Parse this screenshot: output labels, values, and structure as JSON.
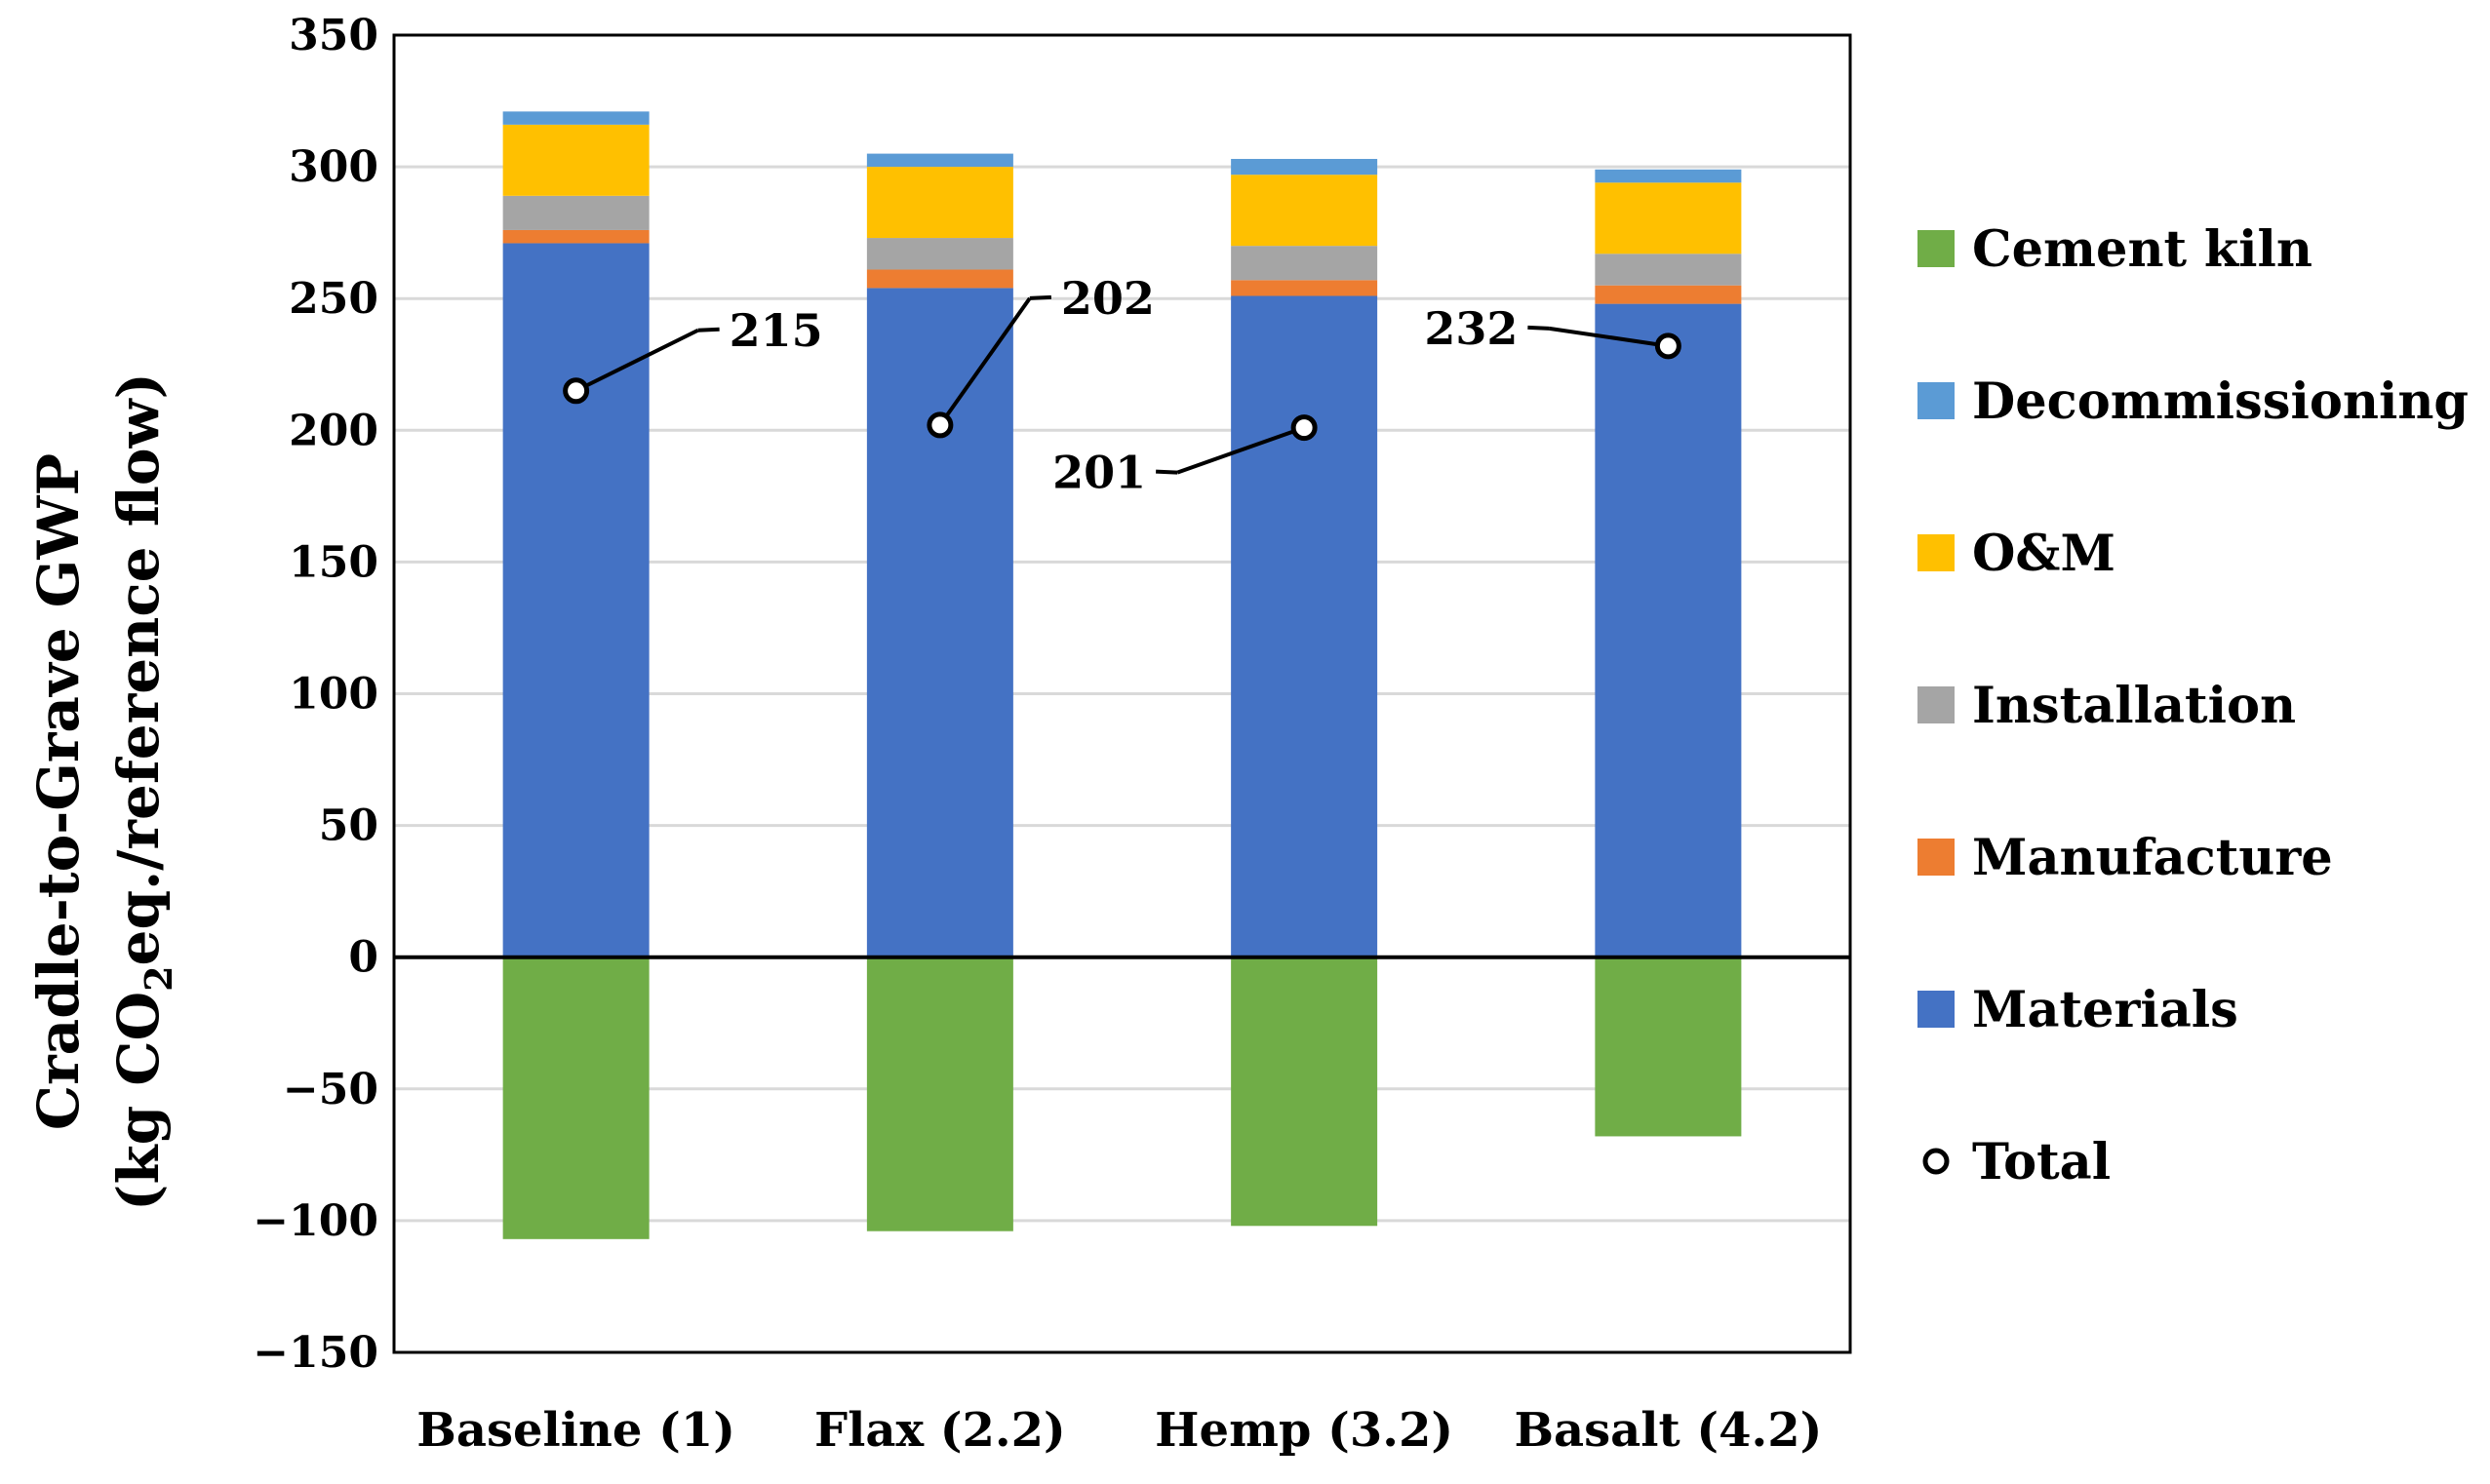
{
  "chart_data": {
    "type": "bar",
    "stacked": true,
    "title": "",
    "xlabel": "",
    "ylabel_line1": "Cradle-to-Grave GWP",
    "ylabel_line2_prefix": "(kg CO",
    "ylabel_line2_sub": "2",
    "ylabel_line2_suffix": "eq./reference flow)",
    "ylim": [
      -150,
      350
    ],
    "yticks": [
      -150,
      -100,
      -50,
      0,
      50,
      100,
      150,
      200,
      250,
      300,
      350
    ],
    "ytick_labels": [
      "−150",
      "−100",
      "−50",
      "0",
      "50",
      "100",
      "150",
      "200",
      "250",
      "300",
      "350"
    ],
    "grid": true,
    "legend_position": "right",
    "categories": [
      "Baseline (1)",
      "Flax (2.2)",
      "Hemp (3.2)",
      "Basalt (4.2)"
    ],
    "series": [
      {
        "name": "Materials",
        "color": "#4472C4",
        "values": [
          271,
          254,
          251,
          248
        ]
      },
      {
        "name": "Manufacture",
        "color": "#ED7D31",
        "values": [
          5,
          7,
          6,
          7
        ]
      },
      {
        "name": "Installation",
        "color": "#A5A5A5",
        "values": [
          13,
          12,
          13,
          12
        ]
      },
      {
        "name": "O&M",
        "color": "#FFC000",
        "values": [
          27,
          27,
          27,
          27
        ]
      },
      {
        "name": "Decommissioning",
        "color": "#5B9BD5",
        "values": [
          5,
          5,
          6,
          5
        ]
      },
      {
        "name": "Cement kiln",
        "color": "#70AD47",
        "values": [
          -107,
          -104,
          -102,
          -68
        ]
      }
    ],
    "totals": {
      "name": "Total",
      "values": [
        215,
        202,
        201,
        232
      ],
      "labels": [
        "215",
        "202",
        "201",
        "232"
      ]
    },
    "legend_order": [
      "Cement kiln",
      "Decommissioning",
      "O&M",
      "Installation",
      "Manufacture",
      "Materials",
      "Total"
    ]
  }
}
